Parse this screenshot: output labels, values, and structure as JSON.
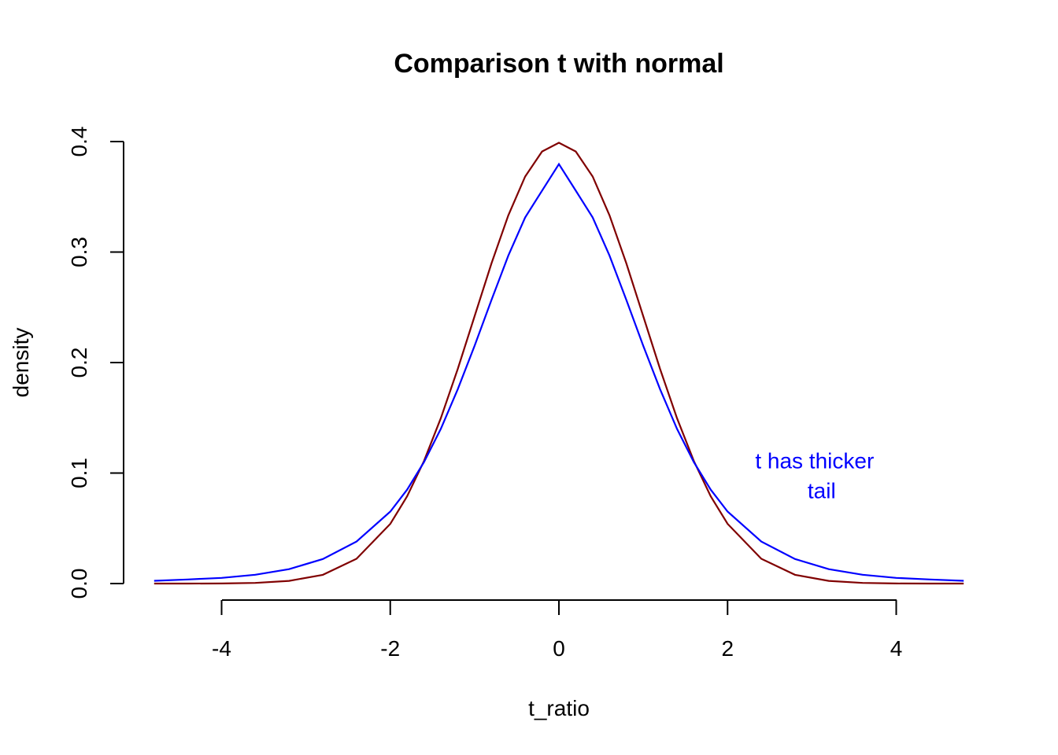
{
  "chart_data": {
    "type": "line",
    "title": "Comparison t with normal",
    "xlabel": "t_ratio",
    "ylabel": "density",
    "xlim": [
      -4.8,
      4.8
    ],
    "ylim": [
      0,
      0.4
    ],
    "grid": false,
    "x_ticks": [
      -4,
      -2,
      0,
      2,
      4
    ],
    "x_tick_labels": [
      "-4",
      "-2",
      "0",
      "2",
      "4"
    ],
    "y_ticks": [
      0,
      0.1,
      0.2,
      0.3,
      0.4
    ],
    "y_tick_labels": [
      "0.0",
      "0.1",
      "0.2",
      "0.3",
      "0.4"
    ],
    "series": [
      {
        "color": "#800000",
        "x": [
          -4.8,
          -4.4,
          -4.0,
          -3.6,
          -3.2,
          -2.8,
          -2.4,
          -2.0,
          -1.8,
          -1.6,
          -1.4,
          -1.2,
          -1.0,
          -0.8,
          -0.6,
          -0.4,
          -0.2,
          0.0,
          0.2,
          0.4,
          0.6,
          0.8,
          1.0,
          1.2,
          1.4,
          1.6,
          1.8,
          2.0,
          2.4,
          2.8,
          3.2,
          3.6,
          4.0,
          4.4,
          4.8
        ],
        "y": [
          0.0,
          0.0,
          0.0001,
          0.0006,
          0.0024,
          0.0079,
          0.0224,
          0.054,
          0.079,
          0.1109,
          0.1497,
          0.1942,
          0.242,
          0.2897,
          0.3332,
          0.3683,
          0.391,
          0.3989,
          0.391,
          0.3683,
          0.3332,
          0.2897,
          0.242,
          0.1942,
          0.1497,
          0.1109,
          0.079,
          0.054,
          0.0224,
          0.0079,
          0.0024,
          0.0006,
          0.0001,
          0.0,
          0.0
        ]
      },
      {
        "color": "#0000ff",
        "x": [
          -4.8,
          -4.4,
          -4.0,
          -3.6,
          -3.2,
          -2.8,
          -2.4,
          -2.0,
          -1.8,
          -1.6,
          -1.4,
          -1.2,
          -1.0,
          -0.8,
          -0.6,
          -0.4,
          -0.2,
          0.0,
          0.2,
          0.4,
          0.6,
          0.8,
          1.0,
          1.2,
          1.4,
          1.6,
          1.8,
          2.0,
          2.4,
          2.8,
          3.2,
          3.6,
          4.0,
          4.4,
          4.8
        ],
        "y": [
          0.0025,
          0.0037,
          0.0051,
          0.008,
          0.013,
          0.0222,
          0.038,
          0.0651,
          0.085,
          0.1099,
          0.14,
          0.1759,
          0.2152,
          0.2566,
          0.2967,
          0.3313,
          0.3556,
          0.3796,
          0.3556,
          0.3313,
          0.2967,
          0.2566,
          0.2152,
          0.1759,
          0.14,
          0.1099,
          0.085,
          0.0651,
          0.038,
          0.0222,
          0.013,
          0.008,
          0.0051,
          0.0037,
          0.0025
        ]
      }
    ],
    "annotation": {
      "lines": [
        "t has thicker",
        "tail"
      ],
      "color": "#0000ff",
      "x": 2.5,
      "y": 0.098
    }
  }
}
